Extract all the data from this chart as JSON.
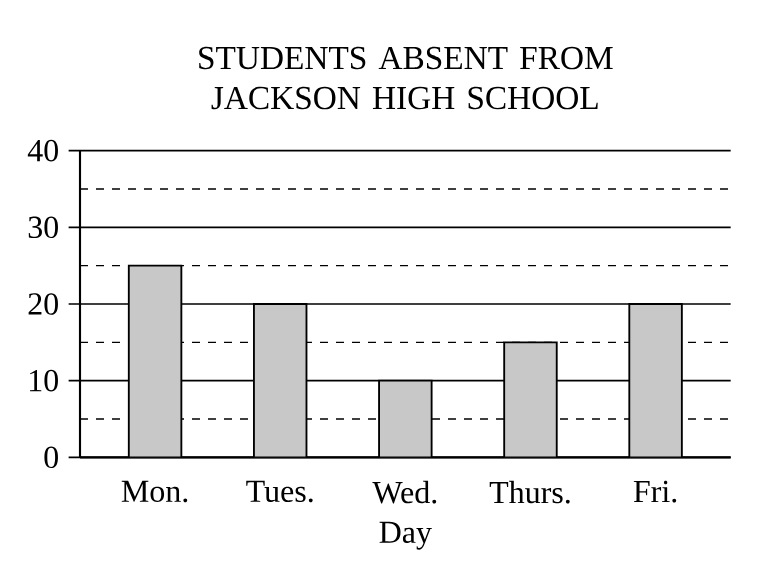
{
  "chart_data": {
    "type": "bar",
    "title": "STUDENTS ABSENT FROM JACKSON HIGH SCHOOL",
    "xlabel": "Day",
    "categories": [
      "Mon.",
      "Tues.",
      "Wed.",
      "Thurs.",
      "Fri."
    ],
    "values": [
      25,
      20,
      10,
      15,
      20
    ],
    "color": "#c8c8c8",
    "ylim": [
      0,
      40
    ],
    "yticks": [
      0,
      10,
      20,
      30,
      40
    ],
    "grid": true
  }
}
